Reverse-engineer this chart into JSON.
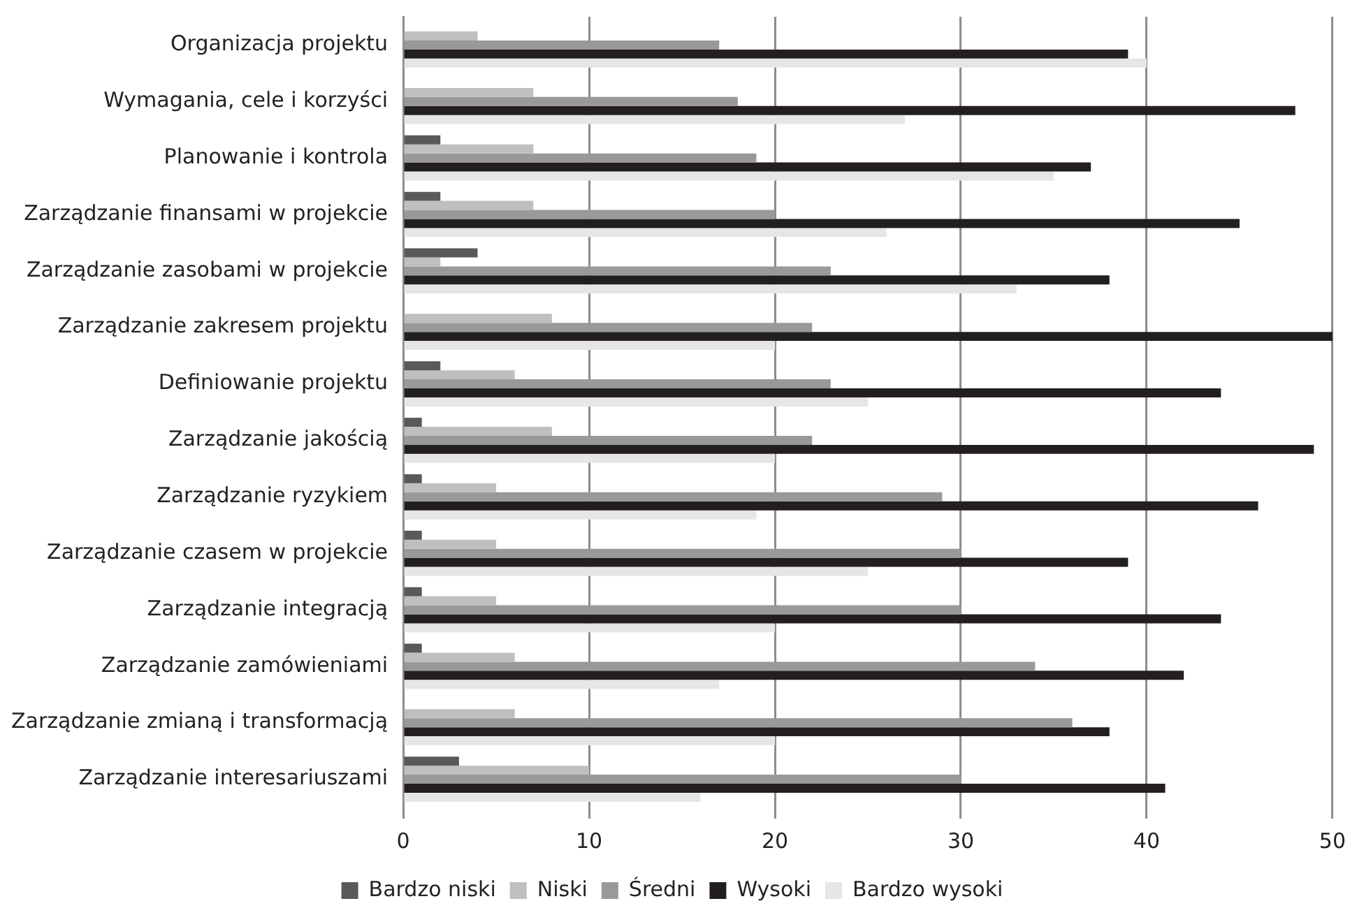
{
  "chart_data": {
    "type": "bar",
    "orientation": "horizontal",
    "categories": [
      "Organizacja projektu",
      "Wymagania, cele i korzyści",
      "Planowanie i kontrola",
      "Zarządzanie finansami w projekcie",
      "Zarządzanie zasobami w projekcie",
      "Zarządzanie zakresem projektu",
      "Definiowanie projektu",
      "Zarządzanie jakością",
      "Zarządzanie ryzykiem",
      "Zarządzanie czasem w projekcie",
      "Zarządzanie integracją",
      "Zarządzanie zamówieniami",
      "Zarządzanie zmianą i transformacją",
      "Zarządzanie interesariuszami"
    ],
    "series": [
      {
        "name": "Bardzo niski",
        "color": "#595959",
        "values": [
          0,
          0,
          2,
          2,
          4,
          0,
          2,
          1,
          1,
          1,
          1,
          1,
          0,
          3
        ]
      },
      {
        "name": "Niski",
        "color": "#bfbfbf",
        "values": [
          4,
          7,
          7,
          7,
          2,
          8,
          6,
          8,
          5,
          5,
          5,
          6,
          6,
          10
        ]
      },
      {
        "name": "Średni",
        "color": "#999999",
        "values": [
          17,
          18,
          19,
          20,
          23,
          22,
          23,
          22,
          29,
          30,
          30,
          34,
          36,
          30
        ]
      },
      {
        "name": "Wysoki",
        "color": "#231f20",
        "values": [
          39,
          48,
          37,
          45,
          38,
          50,
          44,
          49,
          46,
          39,
          44,
          42,
          38,
          41
        ]
      },
      {
        "name": "Bardzo wysoki",
        "color": "#e6e6e6",
        "values": [
          40,
          27,
          35,
          26,
          33,
          20,
          25,
          20,
          19,
          25,
          20,
          17,
          20,
          16
        ]
      }
    ],
    "xlim": [
      0,
      50
    ],
    "xticks": [
      0,
      10,
      20,
      30,
      40,
      50
    ],
    "grid": "x",
    "legend": "bottom"
  }
}
